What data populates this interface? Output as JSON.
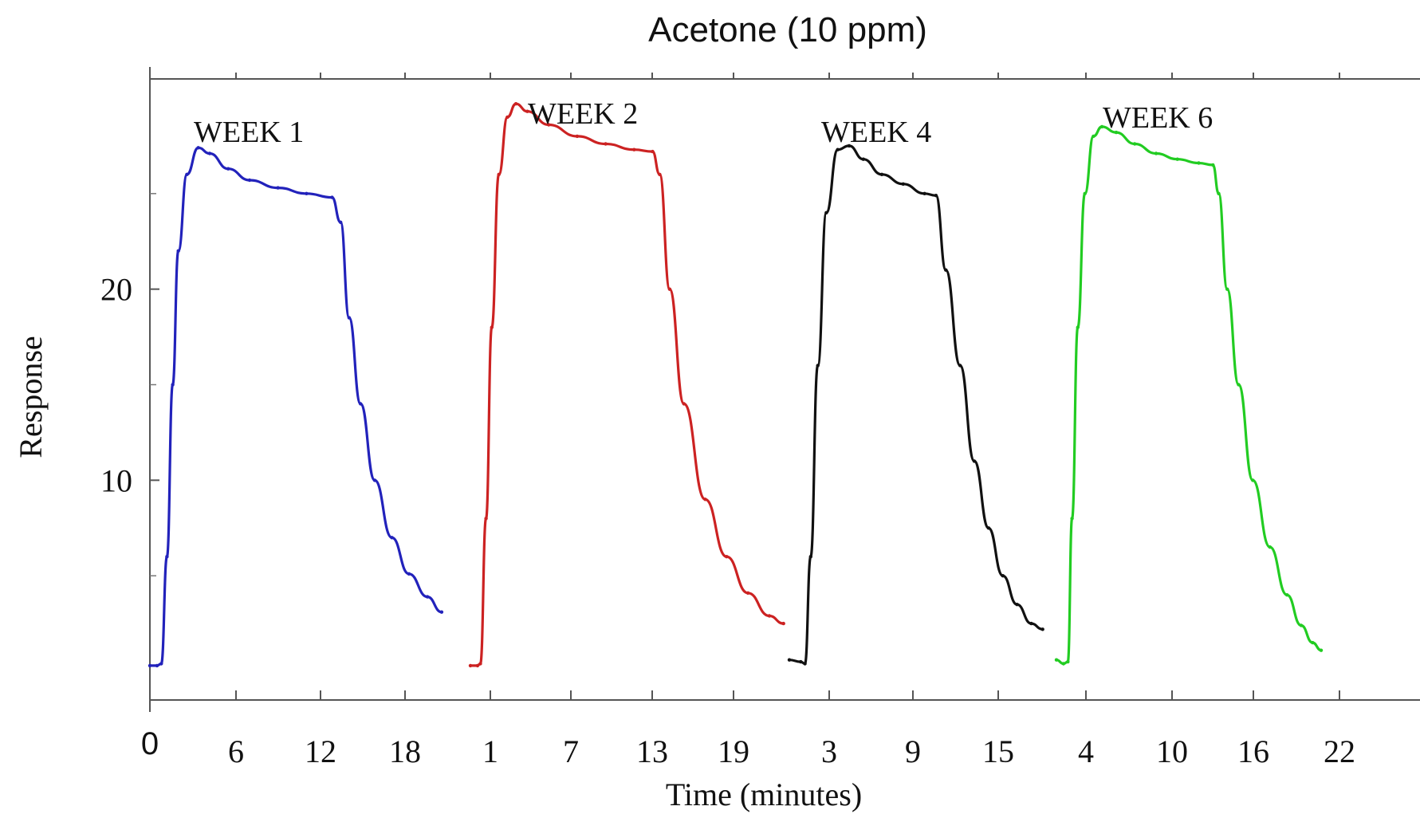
{
  "chart_data": {
    "type": "line",
    "title": "Acetone (10 ppm)",
    "xlabel": "Time (minutes)",
    "ylabel": "Response",
    "ylim": [
      -1.5,
      31
    ],
    "y_ticks": [
      10,
      20
    ],
    "grid": false,
    "x_tick_labels": [
      "0",
      "6",
      "12",
      "18",
      "1",
      "7",
      "13",
      "19",
      "3",
      "9",
      "15",
      "4",
      "10",
      "16",
      "22"
    ],
    "series": [
      {
        "name": "WEEK 1",
        "color": "#2222bb",
        "points": [
          [
            0.0,
            0.3
          ],
          [
            0.5,
            0.3
          ],
          [
            0.8,
            0.4
          ],
          [
            1.2,
            6.0
          ],
          [
            1.6,
            15.0
          ],
          [
            2.0,
            22.0
          ],
          [
            2.6,
            26.0
          ],
          [
            3.4,
            27.4
          ],
          [
            4.2,
            27.1
          ],
          [
            5.5,
            26.3
          ],
          [
            7.0,
            25.7
          ],
          [
            9.0,
            25.3
          ],
          [
            11.0,
            25.0
          ],
          [
            12.8,
            24.8
          ],
          [
            13.4,
            23.5
          ],
          [
            14.0,
            18.5
          ],
          [
            14.8,
            14.0
          ],
          [
            15.8,
            10.0
          ],
          [
            17.0,
            7.0
          ],
          [
            18.2,
            5.1
          ],
          [
            19.5,
            3.9
          ],
          [
            20.5,
            3.1
          ]
        ]
      },
      {
        "name": "WEEK 2",
        "color": "#cc2222",
        "points": [
          [
            0.0,
            0.3
          ],
          [
            0.5,
            0.3
          ],
          [
            0.7,
            0.4
          ],
          [
            1.1,
            8.0
          ],
          [
            1.5,
            18.0
          ],
          [
            2.0,
            26.0
          ],
          [
            2.6,
            29.0
          ],
          [
            3.2,
            29.7
          ],
          [
            4.0,
            29.3
          ],
          [
            5.5,
            28.6
          ],
          [
            7.5,
            28.0
          ],
          [
            9.5,
            27.6
          ],
          [
            11.5,
            27.3
          ],
          [
            12.8,
            27.2
          ],
          [
            13.3,
            26.0
          ],
          [
            14.0,
            20.0
          ],
          [
            15.0,
            14.0
          ],
          [
            16.5,
            9.0
          ],
          [
            18.0,
            6.0
          ],
          [
            19.5,
            4.1
          ],
          [
            21.0,
            2.9
          ],
          [
            22.0,
            2.5
          ]
        ]
      },
      {
        "name": "WEEK 4",
        "color": "#111111",
        "points": [
          [
            0.0,
            0.6
          ],
          [
            0.8,
            0.5
          ],
          [
            1.1,
            0.4
          ],
          [
            1.5,
            6.0
          ],
          [
            2.0,
            16.0
          ],
          [
            2.6,
            24.0
          ],
          [
            3.4,
            27.3
          ],
          [
            4.2,
            27.5
          ],
          [
            5.2,
            26.8
          ],
          [
            6.5,
            26.0
          ],
          [
            8.0,
            25.5
          ],
          [
            9.5,
            25.0
          ],
          [
            10.3,
            24.9
          ],
          [
            11.0,
            21.0
          ],
          [
            12.0,
            16.0
          ],
          [
            13.0,
            11.0
          ],
          [
            14.0,
            7.5
          ],
          [
            15.0,
            5.0
          ],
          [
            16.0,
            3.5
          ],
          [
            17.0,
            2.5
          ],
          [
            17.8,
            2.2
          ]
        ]
      },
      {
        "name": "WEEK 6",
        "color": "#22cc22",
        "points": [
          [
            0.0,
            0.6
          ],
          [
            0.5,
            0.4
          ],
          [
            0.8,
            0.5
          ],
          [
            1.1,
            8.0
          ],
          [
            1.5,
            18.0
          ],
          [
            2.0,
            25.0
          ],
          [
            2.6,
            28.0
          ],
          [
            3.2,
            28.5
          ],
          [
            4.2,
            28.2
          ],
          [
            5.5,
            27.6
          ],
          [
            7.0,
            27.1
          ],
          [
            8.5,
            26.8
          ],
          [
            10.0,
            26.6
          ],
          [
            11.0,
            26.5
          ],
          [
            11.4,
            25.0
          ],
          [
            12.0,
            20.0
          ],
          [
            12.8,
            15.0
          ],
          [
            13.8,
            10.0
          ],
          [
            15.0,
            6.5
          ],
          [
            16.2,
            4.0
          ],
          [
            17.2,
            2.4
          ],
          [
            18.0,
            1.5
          ],
          [
            18.6,
            1.1
          ]
        ]
      }
    ]
  }
}
